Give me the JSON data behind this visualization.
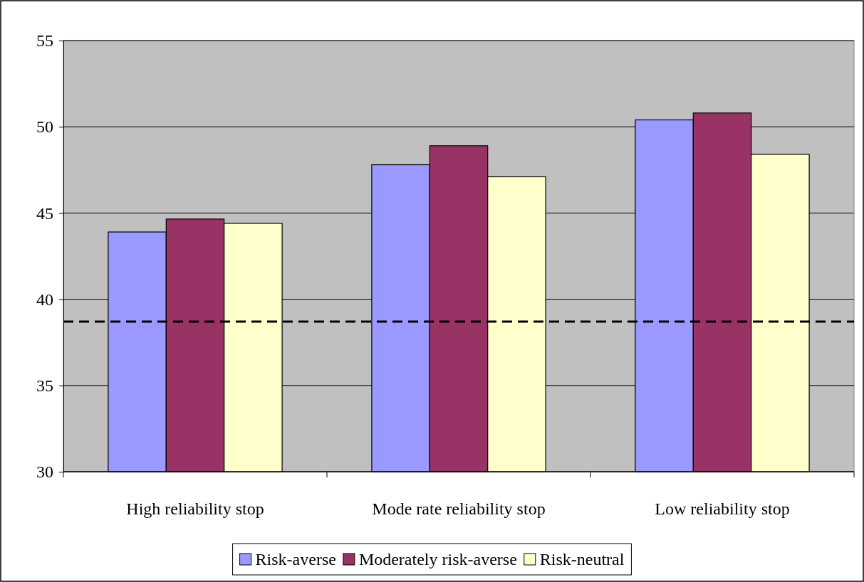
{
  "chart_data": {
    "type": "bar",
    "categories": [
      "High reliability stop",
      "Mode rate reliability stop",
      "Low reliability stop"
    ],
    "series": [
      {
        "name": "Risk-averse",
        "color": "#9999ff",
        "values": [
          43.9,
          47.8,
          50.4
        ]
      },
      {
        "name": "Moderately risk-averse",
        "color": "#993366",
        "values": [
          44.65,
          48.9,
          50.8
        ]
      },
      {
        "name": "Risk-neutral",
        "color": "#ffffcc",
        "values": [
          44.4,
          47.1,
          48.4
        ]
      }
    ],
    "ylim": [
      30,
      55
    ],
    "yticks": [
      30,
      35,
      40,
      45,
      50,
      55
    ],
    "grid": "y",
    "legend": "bottom",
    "ref_lines": [
      {
        "axis": "y",
        "value": 38.7,
        "color": "#000000",
        "line_style": "dashed"
      }
    ]
  }
}
